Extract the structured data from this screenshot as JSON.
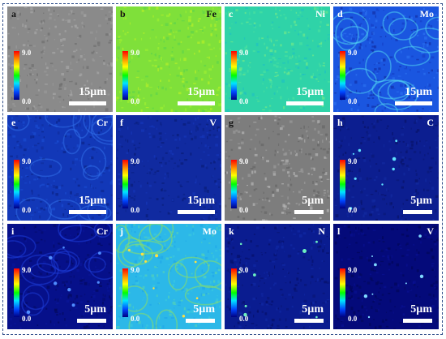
{
  "figure": {
    "colorbar": {
      "max": "9.0",
      "min": "0.0"
    },
    "panels": [
      {
        "letter": "a",
        "element": "",
        "scale": "15µm",
        "style": "sem"
      },
      {
        "letter": "b",
        "element": "Fe",
        "scale": "15µm",
        "style": "fe"
      },
      {
        "letter": "c",
        "element": "Ni",
        "scale": "15µm",
        "style": "ni"
      },
      {
        "letter": "d",
        "element": "Mo",
        "scale": "15µm",
        "style": "mo"
      },
      {
        "letter": "e",
        "element": "Cr",
        "scale": "15µm",
        "style": "cr"
      },
      {
        "letter": "f",
        "element": "V",
        "scale": "15µm",
        "style": "v"
      },
      {
        "letter": "g",
        "element": "",
        "scale": "5µm",
        "style": "sem2"
      },
      {
        "letter": "h",
        "element": "C",
        "scale": "5µm",
        "style": "c"
      },
      {
        "letter": "i",
        "element": "Cr",
        "scale": "5µm",
        "style": "cr2"
      },
      {
        "letter": "j",
        "element": "Mo",
        "scale": "5µm",
        "style": "mo2"
      },
      {
        "letter": "k",
        "element": "N",
        "scale": "5µm",
        "style": "n"
      },
      {
        "letter": "l",
        "element": "V",
        "scale": "5µm",
        "style": "v2"
      }
    ]
  }
}
